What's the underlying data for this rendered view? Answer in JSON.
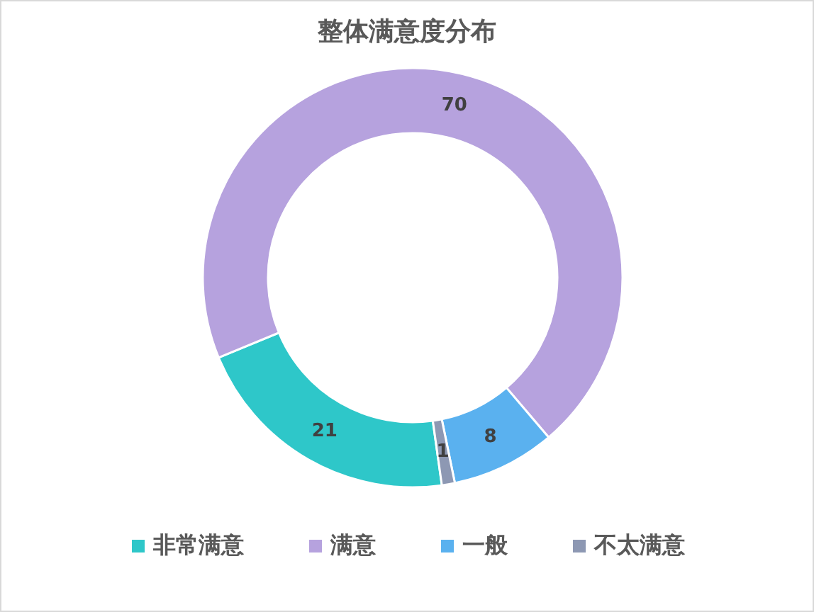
{
  "chart_data": {
    "type": "donut",
    "title": "整体满意度分布",
    "categories": [
      "非常满意",
      "满意",
      "一般",
      "不太满意"
    ],
    "values": [
      21,
      70,
      8,
      1
    ],
    "colors": [
      "#2ec7c9",
      "#b6a2de",
      "#5ab1ef",
      "#8d98b3"
    ],
    "data_labels": true,
    "legend": "bottom"
  }
}
